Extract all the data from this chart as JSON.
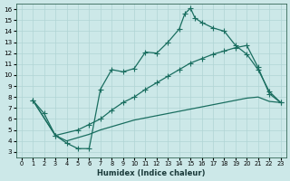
{
  "xlabel": "Humidex (Indice chaleur)",
  "bg_color": "#cce8e8",
  "grid_color": "#b0d4d4",
  "line_color": "#1a6e60",
  "xlim": [
    -0.5,
    23.5
  ],
  "ylim": [
    2.5,
    16.5
  ],
  "xticks": [
    0,
    1,
    2,
    3,
    4,
    5,
    6,
    7,
    8,
    9,
    10,
    11,
    12,
    13,
    14,
    15,
    16,
    17,
    18,
    19,
    20,
    21,
    22,
    23
  ],
  "yticks": [
    3,
    4,
    5,
    6,
    7,
    8,
    9,
    10,
    11,
    12,
    13,
    14,
    15,
    16
  ],
  "upper_x": [
    1,
    2,
    3,
    4,
    5,
    6,
    7,
    8,
    9,
    10,
    11,
    12,
    13,
    14,
    14.5,
    15,
    15.4,
    16,
    17,
    18,
    19,
    20,
    21,
    22,
    23
  ],
  "upper_y": [
    7.7,
    6.5,
    4.5,
    3.8,
    3.3,
    3.3,
    8.7,
    10.5,
    10.3,
    10.6,
    12.1,
    12.0,
    13.0,
    14.2,
    15.6,
    16.1,
    15.2,
    14.8,
    14.3,
    14.0,
    12.7,
    11.9,
    10.5,
    8.5,
    7.5
  ],
  "mid_x": [
    1,
    3,
    5,
    6,
    7,
    8,
    9,
    10,
    11,
    12,
    13,
    14,
    15,
    16,
    17,
    18,
    19,
    20,
    21,
    22,
    23
  ],
  "mid_y": [
    7.7,
    4.5,
    5.0,
    5.5,
    6.0,
    6.8,
    7.5,
    8.0,
    8.7,
    9.3,
    9.9,
    10.5,
    11.1,
    11.5,
    11.9,
    12.2,
    12.5,
    12.7,
    10.7,
    8.3,
    7.5
  ],
  "low_x": [
    1,
    3,
    4,
    5,
    6,
    7,
    8,
    9,
    10,
    11,
    12,
    13,
    14,
    15,
    16,
    17,
    18,
    19,
    20,
    21,
    22,
    23
  ],
  "low_y": [
    7.7,
    4.5,
    4.0,
    4.3,
    4.6,
    5.0,
    5.3,
    5.6,
    5.9,
    6.1,
    6.3,
    6.5,
    6.7,
    6.9,
    7.1,
    7.3,
    7.5,
    7.7,
    7.9,
    8.0,
    7.6,
    7.5
  ],
  "line_width": 0.9,
  "marker_size": 2.5
}
